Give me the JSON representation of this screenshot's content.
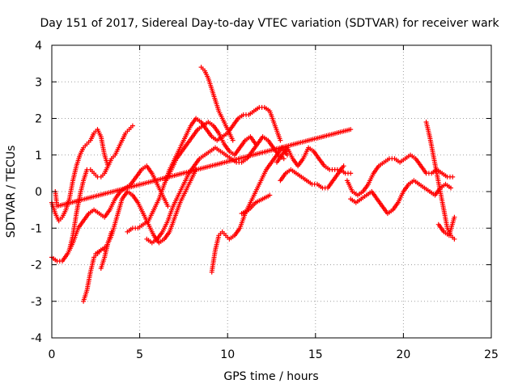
{
  "chart_data": {
    "type": "scatter",
    "title": "Day 151 of 2017, Sidereal Day-to-day VTEC variation (SDTVAR) for receiver wark",
    "xlabel": "GPS time / hours",
    "ylabel": "SDTVAR / TECUs",
    "xlim": [
      0,
      25
    ],
    "ylim": [
      -4,
      4
    ],
    "xticks": [
      "0",
      "5",
      "10",
      "15",
      "20",
      "25"
    ],
    "yticks": [
      "-4",
      "-3",
      "-2",
      "-1",
      "0",
      "1",
      "2",
      "3",
      "4"
    ],
    "grid": true,
    "marker": "plus",
    "color": "#ff0000",
    "series": [
      {
        "x": [
          0.0,
          0.2,
          0.4,
          0.6,
          0.8,
          1.0,
          1.2,
          1.4,
          1.6,
          1.8,
          2.0,
          2.2,
          2.4,
          2.6,
          2.8,
          3.0,
          3.2
        ],
        "y": [
          -0.3,
          -0.6,
          -0.8,
          -0.7,
          -0.5,
          -0.2,
          0.3,
          0.7,
          1.0,
          1.2,
          1.3,
          1.4,
          1.6,
          1.7,
          1.5,
          1.0,
          0.7
        ]
      },
      {
        "x": [
          1.0,
          1.2,
          1.4,
          1.6,
          1.8,
          2.0,
          2.2,
          2.4,
          2.6,
          2.8,
          3.0,
          3.2,
          3.4,
          3.6,
          3.8,
          4.0,
          4.2,
          4.4,
          4.6
        ],
        "y": [
          -1.6,
          -1.2,
          -0.6,
          -0.1,
          0.3,
          0.6,
          0.6,
          0.5,
          0.4,
          0.4,
          0.5,
          0.7,
          0.9,
          1.0,
          1.2,
          1.4,
          1.6,
          1.7,
          1.8
        ]
      },
      {
        "x": [
          0.0,
          0.3,
          0.6,
          0.9,
          1.2,
          1.5,
          1.8,
          2.1,
          2.4,
          2.7,
          3.0,
          3.3,
          3.6,
          3.9,
          4.2,
          4.5,
          4.8,
          5.1,
          5.4,
          5.7,
          6.0,
          6.3,
          6.6
        ],
        "y": [
          -1.8,
          -1.9,
          -1.9,
          -1.7,
          -1.4,
          -1.0,
          -0.8,
          -0.6,
          -0.5,
          -0.6,
          -0.7,
          -0.5,
          -0.2,
          0.0,
          0.1,
          0.2,
          0.4,
          0.6,
          0.7,
          0.5,
          0.2,
          -0.1,
          -0.4
        ]
      },
      {
        "x": [
          2.5,
          2.8,
          3.1,
          3.4,
          3.7,
          4.0,
          4.3,
          4.6,
          4.9,
          5.2,
          5.5,
          5.8,
          6.1,
          6.4,
          6.7,
          7.0,
          7.3,
          7.6,
          7.9,
          8.2
        ],
        "y": [
          -1.7,
          -1.6,
          -1.5,
          -1.2,
          -0.7,
          -0.2,
          0.0,
          -0.1,
          -0.3,
          -0.6,
          -0.9,
          -1.2,
          -1.4,
          -1.3,
          -1.1,
          -0.7,
          -0.3,
          0.0,
          0.3,
          0.6
        ]
      },
      {
        "x": [
          1.8,
          2.0,
          2.2,
          2.4,
          2.6,
          2.8,
          3.0
        ],
        "y": [
          -3.0,
          -2.7,
          -2.2,
          -1.8,
          -1.7,
          -1.6,
          -1.6
        ]
      },
      {
        "x": [
          2.8,
          3.0,
          3.2,
          3.4
        ],
        "y": [
          -2.1,
          -1.8,
          -1.4,
          -1.1
        ]
      },
      {
        "x": [
          4.3,
          4.6,
          4.9,
          5.2,
          5.5,
          5.8,
          6.1,
          6.4,
          6.7,
          7.0,
          7.3,
          7.6,
          7.9,
          8.2,
          8.5,
          8.8,
          9.1,
          9.4,
          9.7,
          10.0,
          10.3,
          10.6,
          10.9,
          11.2,
          11.5,
          11.8,
          12.1,
          12.4,
          12.7,
          13.0
        ],
        "y": [
          -1.1,
          -1.0,
          -1.0,
          -0.9,
          -0.8,
          -0.5,
          -0.2,
          0.2,
          0.6,
          0.9,
          1.2,
          1.5,
          1.8,
          2.0,
          1.9,
          1.7,
          1.5,
          1.4,
          1.5,
          1.6,
          1.8,
          2.0,
          2.1,
          2.1,
          2.2,
          2.3,
          2.3,
          2.2,
          1.8,
          1.4
        ]
      },
      {
        "x": [
          5.4,
          5.7,
          6.0,
          6.3,
          6.6,
          6.9,
          7.2,
          7.5,
          7.8,
          8.1,
          8.4,
          8.7,
          9.0,
          9.3,
          9.6,
          9.9,
          10.2,
          10.5,
          10.8,
          11.1,
          11.4,
          11.7,
          12.0,
          12.3,
          12.6,
          12.9,
          13.2
        ],
        "y": [
          -1.3,
          -1.4,
          -1.3,
          -1.1,
          -0.8,
          -0.4,
          -0.1,
          0.2,
          0.5,
          0.7,
          0.9,
          1.0,
          1.1,
          1.2,
          1.1,
          1.0,
          0.9,
          0.8,
          0.8,
          0.9,
          1.1,
          1.3,
          1.5,
          1.4,
          1.2,
          1.0,
          0.9
        ]
      },
      {
        "x": [
          6.5,
          6.8,
          7.1,
          7.4,
          7.7,
          8.0,
          8.3,
          8.6,
          8.9,
          9.2,
          9.5,
          9.8,
          10.1,
          10.4,
          10.7,
          11.0,
          11.3,
          11.6
        ],
        "y": [
          0.3,
          0.6,
          0.9,
          1.1,
          1.3,
          1.5,
          1.7,
          1.8,
          1.9,
          1.8,
          1.6,
          1.3,
          1.1,
          1.0,
          1.2,
          1.4,
          1.5,
          1.3
        ]
      },
      {
        "x": [
          8.5,
          8.7,
          8.9,
          9.1,
          9.3,
          9.5,
          9.7,
          9.9,
          10.1,
          10.3
        ],
        "y": [
          3.4,
          3.3,
          3.1,
          2.8,
          2.5,
          2.2,
          2.0,
          1.8,
          1.6,
          1.4
        ]
      },
      {
        "x": [
          9.1,
          9.3,
          9.5,
          9.7,
          9.9,
          10.1,
          10.4,
          10.7,
          11.0,
          11.3,
          11.6,
          11.9,
          12.2,
          12.5,
          12.8,
          13.1,
          13.4
        ],
        "y": [
          -2.2,
          -1.6,
          -1.2,
          -1.1,
          -1.2,
          -1.3,
          -1.2,
          -1.0,
          -0.6,
          -0.3,
          0.0,
          0.3,
          0.6,
          0.8,
          1.0,
          1.2,
          1.0
        ]
      },
      {
        "x": [
          10.8,
          11.2,
          11.6,
          12.0,
          12.4
        ],
        "y": [
          -0.6,
          -0.5,
          -0.3,
          -0.2,
          -0.1
        ]
      },
      {
        "x": [
          12.8,
          13.1,
          13.4,
          13.7,
          14.0,
          14.3,
          14.6,
          14.9,
          15.2,
          15.5,
          15.8,
          16.1,
          16.4,
          16.7,
          17.0
        ],
        "y": [
          0.8,
          1.0,
          1.2,
          0.9,
          0.7,
          0.9,
          1.2,
          1.1,
          0.9,
          0.7,
          0.6,
          0.6,
          0.6,
          0.5,
          0.5
        ]
      },
      {
        "x": [
          13.0,
          13.3,
          13.6,
          13.9,
          14.2,
          14.5,
          14.8,
          15.1,
          15.4,
          15.7,
          16.0,
          16.3,
          16.6
        ],
        "y": [
          0.3,
          0.5,
          0.6,
          0.5,
          0.4,
          0.3,
          0.2,
          0.2,
          0.1,
          0.1,
          0.3,
          0.5,
          0.7
        ]
      },
      {
        "x": [
          16.8,
          17.1,
          17.4,
          17.7,
          18.0,
          18.3,
          18.6,
          18.9,
          19.2,
          19.5,
          19.8,
          20.1,
          20.4,
          20.7,
          21.0,
          21.3,
          21.6,
          21.9,
          22.2,
          22.5,
          22.8
        ],
        "y": [
          0.3,
          0.0,
          -0.1,
          0.0,
          0.2,
          0.5,
          0.7,
          0.8,
          0.9,
          0.9,
          0.8,
          0.9,
          1.0,
          0.9,
          0.7,
          0.5,
          0.5,
          0.6,
          0.5,
          0.4,
          0.4
        ]
      },
      {
        "x": [
          17.0,
          17.3,
          17.6,
          17.9,
          18.2,
          18.5,
          18.8,
          19.1,
          19.4,
          19.7,
          20.0,
          20.3,
          20.6,
          20.9,
          21.2,
          21.5,
          21.8,
          22.1,
          22.4,
          22.7
        ],
        "y": [
          -0.2,
          -0.3,
          -0.2,
          -0.1,
          0.0,
          -0.2,
          -0.4,
          -0.6,
          -0.5,
          -0.3,
          0.0,
          0.2,
          0.3,
          0.2,
          0.1,
          0.0,
          -0.1,
          0.1,
          0.2,
          0.1
        ]
      },
      {
        "x": [
          21.3,
          21.5,
          21.7,
          21.9,
          22.1,
          22.3,
          22.5,
          22.7,
          22.9
        ],
        "y": [
          1.9,
          1.5,
          1.0,
          0.5,
          0.0,
          -0.5,
          -1.0,
          -1.2,
          -1.3
        ]
      },
      {
        "x": [
          22.0,
          22.3,
          22.6,
          22.9
        ],
        "y": [
          -0.9,
          -1.1,
          -1.2,
          -0.7
        ]
      },
      {
        "x": [
          0.2,
          0.3,
          17.0
        ],
        "y": [
          0.0,
          -0.4,
          1.7
        ]
      }
    ]
  }
}
